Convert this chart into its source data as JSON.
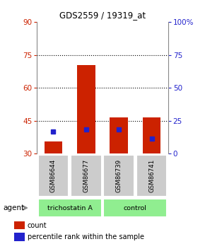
{
  "title": "GDS2559 / 19319_at",
  "samples": [
    "GSM86644",
    "GSM86677",
    "GSM86739",
    "GSM86741"
  ],
  "group_label_1": "trichostatin A",
  "group_label_2": "control",
  "bar_bottom": 30,
  "red_bar_tops": [
    35.5,
    70.5,
    46.5,
    46.5
  ],
  "blue_marker_values": [
    40.0,
    41.0,
    41.0,
    37.0
  ],
  "ylim_left": [
    30,
    90
  ],
  "ylim_right": [
    0,
    100
  ],
  "yticks_left": [
    30,
    45,
    60,
    75,
    90
  ],
  "yticks_right": [
    0,
    25,
    50,
    75,
    100
  ],
  "ytick_labels_right": [
    "0",
    "25",
    "50",
    "75",
    "100%"
  ],
  "hlines": [
    45,
    60,
    75
  ],
  "bar_color": "#CC2200",
  "blue_color": "#2222CC",
  "bar_width": 0.55,
  "label_color_left": "#CC2200",
  "label_color_right": "#2222CC",
  "agent_label": "agent",
  "legend_count": "count",
  "legend_percentile": "percentile rank within the sample",
  "sample_box_color": "#CCCCCC",
  "group_box_color": "#90EE90"
}
